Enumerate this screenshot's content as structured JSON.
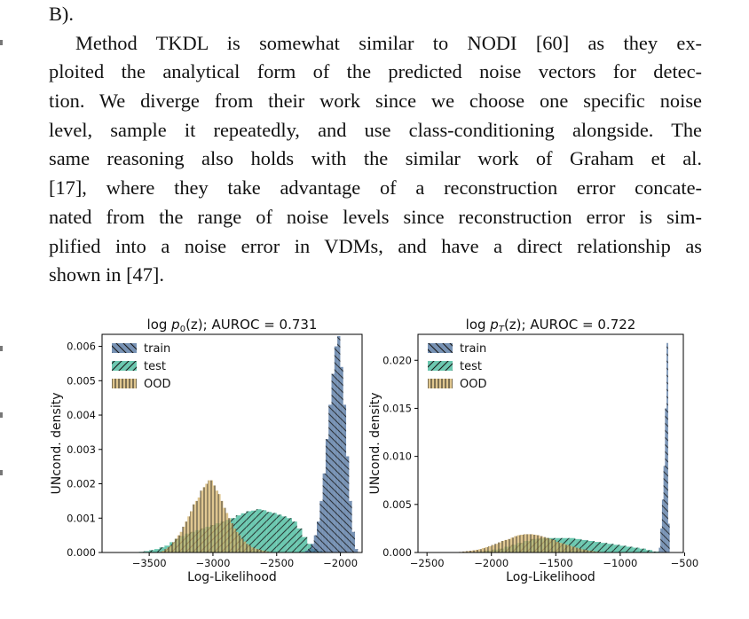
{
  "paper": {
    "lines": [
      "B).",
      "Method TKDL is somewhat similar to NODI [60] as they ex-",
      "ploited the analytical form of the predicted noise vectors for detec-",
      "tion. We diverge from their work since we choose one specific noise",
      "level, sample it repeatedly, and use class-conditioning alongside. The",
      "same reasoning also holds with the similar work of Graham et al.",
      "[17], where they take advantage of a reconstruction error concate-",
      "nated from the range of noise levels since reconstruction error is sim-",
      "plified into a noise error in VDMs, and have a direct relationship as",
      "shown in [47]."
    ]
  },
  "chart_data": [
    {
      "type": "histogram",
      "title_prefix": "log ",
      "title_math": "p",
      "title_sub": "0",
      "title_suffix": "(z); AUROC = 0.731",
      "xlabel": "Log-Likelihood",
      "ylabel": "UNcond. density",
      "xlim": [
        -3870,
        -1830
      ],
      "ylim": [
        0,
        0.00635
      ],
      "xticks": [
        -3500,
        -3000,
        -2500,
        -2000
      ],
      "xtick_labels": [
        "−3500",
        "−3000",
        "−2500",
        "−2000"
      ],
      "yticks": [
        0,
        0.001,
        0.002,
        0.003,
        0.004,
        0.005,
        0.006
      ],
      "ytick_labels": [
        "0.000",
        "0.001",
        "0.002",
        "0.003",
        "0.004",
        "0.005",
        "0.006"
      ],
      "legend": "top-left",
      "series": [
        {
          "name": "train",
          "color": "#4a6d9b",
          "hatch": "backslash",
          "bin_width": 23,
          "x": [
            -2300,
            -2277,
            -2254,
            -2231,
            -2208,
            -2185,
            -2162,
            -2139,
            -2116,
            -2093,
            -2070,
            -2047,
            -2024,
            -2001,
            -1978,
            -1955,
            -1932,
            -1909,
            -1886
          ],
          "values": [
            0.0,
            5e-05,
            0.0001,
            0.00025,
            0.0005,
            0.0009,
            0.0015,
            0.0023,
            0.0033,
            0.0043,
            0.0052,
            0.006,
            0.0063,
            0.0054,
            0.0043,
            0.0028,
            0.0015,
            0.0006,
            0.0001
          ]
        },
        {
          "name": "test",
          "color": "#3bb595",
          "hatch": "slash",
          "bin_width": 40,
          "x": [
            -3620,
            -3580,
            -3540,
            -3500,
            -3460,
            -3420,
            -3380,
            -3340,
            -3300,
            -3260,
            -3220,
            -3180,
            -3140,
            -3100,
            -3060,
            -3020,
            -2980,
            -2940,
            -2900,
            -2860,
            -2820,
            -2780,
            -2740,
            -2700,
            -2660,
            -2620,
            -2580,
            -2540,
            -2500,
            -2460,
            -2420,
            -2380,
            -2340,
            -2300,
            -2260,
            -2220,
            -2180,
            -2140
          ],
          "values": [
            0.0,
            2e-05,
            4e-05,
            7e-05,
            0.0001,
            0.00015,
            0.0002,
            0.0003,
            0.0004,
            0.00048,
            0.00055,
            0.0006,
            0.00065,
            0.0007,
            0.00075,
            0.0008,
            0.00085,
            0.0009,
            0.00095,
            0.001,
            0.00108,
            0.00114,
            0.0012,
            0.00122,
            0.00126,
            0.00123,
            0.00118,
            0.00115,
            0.0011,
            0.00105,
            0.001,
            0.0009,
            0.0007,
            0.00045,
            0.00025,
            0.0001,
            4e-05,
            0.0
          ]
        },
        {
          "name": "OOD",
          "color": "#d4b36a",
          "hatch": "vertical",
          "bin_width": 20,
          "x": [
            -3420,
            -3400,
            -3380,
            -3360,
            -3340,
            -3320,
            -3300,
            -3280,
            -3260,
            -3240,
            -3220,
            -3200,
            -3180,
            -3160,
            -3140,
            -3120,
            -3100,
            -3080,
            -3060,
            -3040,
            -3020,
            -3000,
            -2980,
            -2960,
            -2940,
            -2920,
            -2900,
            -2880,
            -2860,
            -2840,
            -2820,
            -2800,
            -2780,
            -2760,
            -2740,
            -2720,
            -2700,
            -2680,
            -2660,
            -2640,
            -2620,
            -2600,
            -2580,
            -2560,
            -2540,
            -2520,
            -2500
          ],
          "values": [
            2e-05,
            5e-05,
            0.0001,
            0.00015,
            0.0002,
            0.0003,
            0.0004,
            0.0005,
            0.0006,
            0.00075,
            0.0009,
            0.00105,
            0.0012,
            0.0014,
            0.0015,
            0.0016,
            0.0018,
            0.0019,
            0.002,
            0.0021,
            0.0021,
            0.00195,
            0.0018,
            0.0017,
            0.0015,
            0.0013,
            0.00115,
            0.001,
            0.00085,
            0.0007,
            0.0006,
            0.0005,
            0.0004,
            0.00032,
            0.00025,
            0.0002,
            0.00015,
            0.00012,
            0.0001,
            8e-05,
            6e-05,
            4e-05,
            3e-05,
            2e-05,
            1e-05,
            1e-05,
            0.0
          ]
        }
      ]
    },
    {
      "type": "histogram",
      "title_prefix": "log ",
      "title_math": "p",
      "title_sub": "T",
      "title_suffix": "(z); AUROC = 0.722",
      "xlabel": "Log-Likelihood",
      "ylabel": "UNcond. density",
      "xlim": [
        -2570,
        -510
      ],
      "ylim": [
        0,
        0.0227
      ],
      "xticks": [
        -2500,
        -2000,
        -1500,
        -1000,
        -500
      ],
      "xtick_labels": [
        "−2500",
        "−2000",
        "−1500",
        "−1000",
        "−500"
      ],
      "yticks": [
        0,
        0.005,
        0.01,
        0.015,
        0.02
      ],
      "ytick_labels": [
        "0.000",
        "0.005",
        "0.010",
        "0.015",
        "0.020"
      ],
      "legend": "top-left",
      "series": [
        {
          "name": "train",
          "color": "#4a6d9b",
          "hatch": "backslash",
          "bin_width": 12,
          "x": [
            -700,
            -688,
            -676,
            -664,
            -652,
            -640,
            -628
          ],
          "values": [
            0.0005,
            0.0025,
            0.0055,
            0.009,
            0.015,
            0.0218,
            0.003
          ]
        },
        {
          "name": "test",
          "color": "#3bb595",
          "hatch": "slash",
          "bin_width": 50,
          "x": [
            -2150,
            -2100,
            -2050,
            -2000,
            -1950,
            -1900,
            -1850,
            -1800,
            -1750,
            -1700,
            -1650,
            -1600,
            -1550,
            -1500,
            -1450,
            -1400,
            -1350,
            -1300,
            -1250,
            -1200,
            -1150,
            -1100,
            -1050,
            -1000,
            -950,
            -900,
            -850,
            -800,
            -750,
            -700
          ],
          "values": [
            5e-05,
            0.0001,
            0.0002,
            0.0003,
            0.0004,
            0.0006,
            0.0008,
            0.001,
            0.0012,
            0.0014,
            0.00145,
            0.0015,
            0.0015,
            0.0015,
            0.0015,
            0.0015,
            0.0014,
            0.0013,
            0.0012,
            0.0011,
            0.001,
            0.0009,
            0.0008,
            0.0007,
            0.0006,
            0.0005,
            0.0004,
            0.00025,
            0.0001,
            3e-05
          ]
        },
        {
          "name": "OOD",
          "color": "#d4b36a",
          "hatch": "vertical",
          "bin_width": 25,
          "x": [
            -2300,
            -2275,
            -2250,
            -2225,
            -2200,
            -2175,
            -2150,
            -2125,
            -2100,
            -2075,
            -2050,
            -2025,
            -2000,
            -1975,
            -1950,
            -1925,
            -1900,
            -1875,
            -1850,
            -1825,
            -1800,
            -1775,
            -1750,
            -1725,
            -1700,
            -1675,
            -1650,
            -1625,
            -1600,
            -1575,
            -1550,
            -1525,
            -1500,
            -1475,
            -1450,
            -1425,
            -1400,
            -1375,
            -1350,
            -1325,
            -1300,
            -1275,
            -1250,
            -1225,
            -1200,
            -1175,
            -1150,
            -1125,
            -1100
          ],
          "values": [
            2e-05,
            4e-05,
            6e-05,
            0.0001,
            0.00014,
            0.00018,
            0.00022,
            0.00028,
            0.00035,
            0.00045,
            0.00055,
            0.00065,
            0.00078,
            0.0009,
            0.00105,
            0.0012,
            0.0013,
            0.0014,
            0.00155,
            0.0017,
            0.0018,
            0.00185,
            0.0019,
            0.0019,
            0.0019,
            0.00185,
            0.0018,
            0.0017,
            0.0016,
            0.0015,
            0.0014,
            0.0013,
            0.0011,
            0.001,
            0.0009,
            0.0008,
            0.0007,
            0.0006,
            0.0005,
            0.0004,
            0.00032,
            0.00025,
            0.0002,
            0.00015,
            0.0001,
            7e-05,
            4e-05,
            2e-05,
            1e-05
          ]
        }
      ]
    }
  ]
}
